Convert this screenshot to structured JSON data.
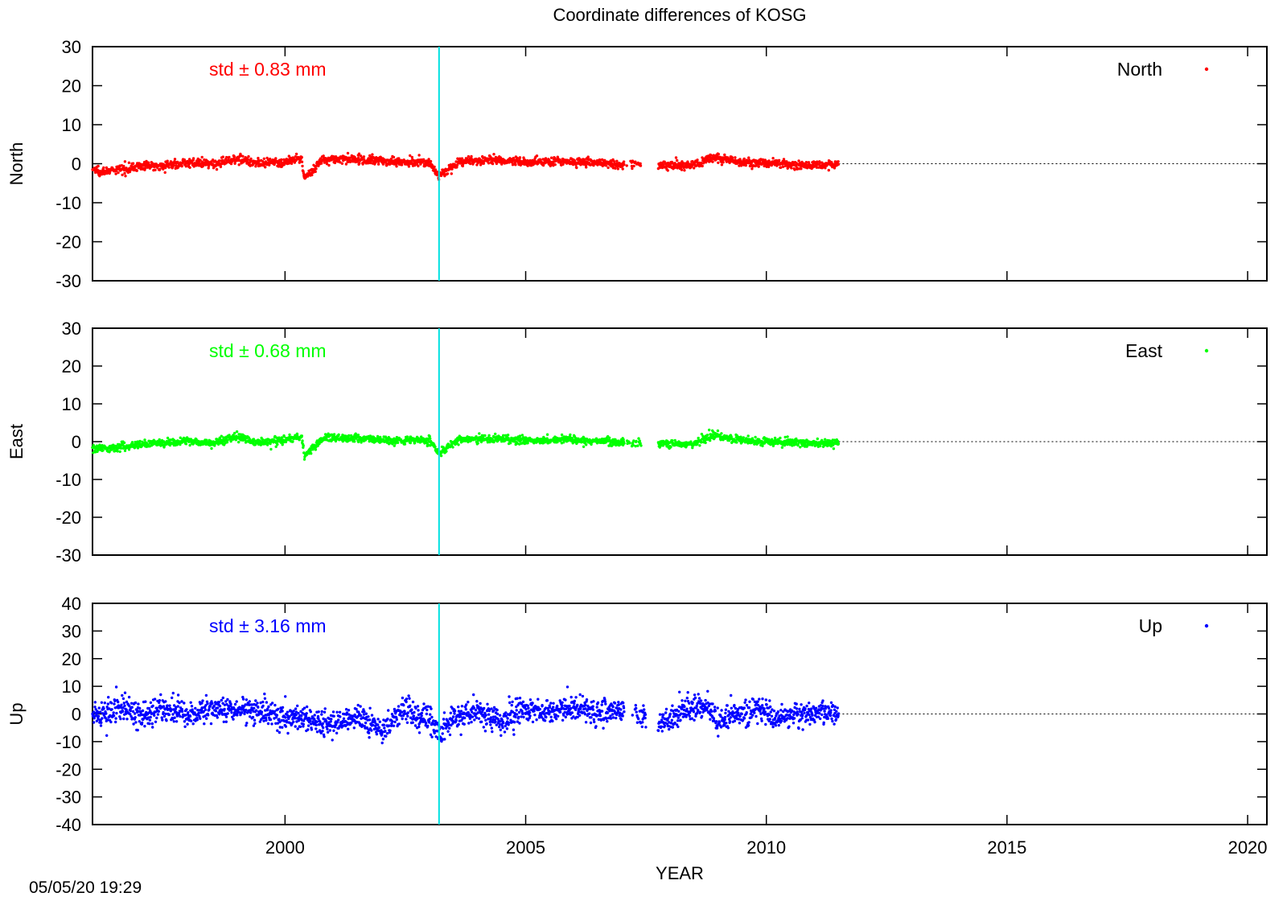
{
  "chart_data": {
    "type": "scatter",
    "title": "Coordinate differences of KOSG",
    "xlabel": "YEAR",
    "timestamp": "05/05/20 19:29",
    "xlim": [
      1996.0,
      2020.4
    ],
    "x_ticks": [
      2000,
      2005,
      2010,
      2015,
      2020
    ],
    "x_tick_labels": [
      "2000",
      "2005",
      "2010",
      "2015",
      "2020"
    ],
    "event_line": {
      "x": 2003.2,
      "color": "#00e0e0"
    },
    "zero_line": "dotted",
    "panels": [
      {
        "name": "North",
        "ylabel": "North",
        "legend": "North",
        "legend_position": "top-right",
        "color": "#ff0000",
        "std_text": "std ± 0.83 mm",
        "ylim": [
          -30,
          30
        ],
        "y_ticks": [
          30,
          20,
          10,
          0,
          -10,
          -20,
          -30
        ],
        "y_tick_labels": [
          "30",
          "20",
          "10",
          "0",
          "-10",
          "-20",
          "-30"
        ],
        "data_x_range": [
          1996.0,
          2011.5
        ],
        "gaps": [
          [
            2007.05,
            2007.1
          ],
          [
            2007.4,
            2007.75
          ]
        ],
        "series_points": [
          [
            1996.0,
            -1.5
          ],
          [
            1996.3,
            -2.0
          ],
          [
            1996.6,
            -1.4
          ],
          [
            1997.0,
            -0.6
          ],
          [
            1997.5,
            -0.4
          ],
          [
            1998.0,
            0.3
          ],
          [
            1998.5,
            -0.2
          ],
          [
            1999.0,
            1.4
          ],
          [
            1999.5,
            -0.1
          ],
          [
            2000.0,
            0.4
          ],
          [
            2000.35,
            1.3
          ],
          [
            2000.4,
            -3.8
          ],
          [
            2000.8,
            1.2
          ],
          [
            2001.3,
            1.1
          ],
          [
            2001.8,
            0.9
          ],
          [
            2002.4,
            0.5
          ],
          [
            2003.0,
            0.4
          ],
          [
            2003.2,
            -3.2
          ],
          [
            2003.6,
            0.4
          ],
          [
            2004.2,
            0.9
          ],
          [
            2005.0,
            0.5
          ],
          [
            2005.8,
            0.6
          ],
          [
            2006.5,
            0.3
          ],
          [
            2007.2,
            -0.3
          ],
          [
            2007.9,
            -0.4
          ],
          [
            2008.5,
            -0.5
          ],
          [
            2008.9,
            1.8
          ],
          [
            2009.5,
            0.2
          ],
          [
            2010.2,
            0.1
          ],
          [
            2010.8,
            -0.4
          ],
          [
            2011.5,
            -0.2
          ]
        ]
      },
      {
        "name": "East",
        "ylabel": "East",
        "legend": "East",
        "legend_position": "top-right",
        "color": "#00ff00",
        "std_text": "std ± 0.68 mm",
        "ylim": [
          -30,
          30
        ],
        "y_ticks": [
          30,
          20,
          10,
          0,
          -10,
          -20,
          -30
        ],
        "y_tick_labels": [
          "30",
          "20",
          "10",
          "0",
          "-10",
          "-20",
          "-30"
        ],
        "data_x_range": [
          1996.0,
          2011.5
        ],
        "gaps": [
          [
            2007.05,
            2007.1
          ],
          [
            2007.4,
            2007.75
          ]
        ],
        "series_points": [
          [
            1996.0,
            -1.6
          ],
          [
            1996.3,
            -1.8
          ],
          [
            1996.6,
            -1.2
          ],
          [
            1997.0,
            -0.6
          ],
          [
            1997.5,
            -0.3
          ],
          [
            1998.0,
            0.2
          ],
          [
            1998.5,
            -0.4
          ],
          [
            1999.0,
            1.3
          ],
          [
            1999.5,
            -0.3
          ],
          [
            2000.0,
            0.4
          ],
          [
            2000.35,
            1.4
          ],
          [
            2000.4,
            -3.8
          ],
          [
            2000.8,
            1.1
          ],
          [
            2001.3,
            1.0
          ],
          [
            2001.8,
            0.6
          ],
          [
            2002.4,
            0.3
          ],
          [
            2003.0,
            0.3
          ],
          [
            2003.2,
            -3.0
          ],
          [
            2003.6,
            0.4
          ],
          [
            2004.2,
            0.8
          ],
          [
            2005.0,
            0.4
          ],
          [
            2005.8,
            0.5
          ],
          [
            2006.5,
            0.2
          ],
          [
            2007.2,
            -0.3
          ],
          [
            2007.9,
            -0.6
          ],
          [
            2008.5,
            -0.6
          ],
          [
            2008.9,
            1.8
          ],
          [
            2009.5,
            0.1
          ],
          [
            2010.2,
            0.0
          ],
          [
            2010.8,
            -0.3
          ],
          [
            2011.5,
            -0.3
          ]
        ]
      },
      {
        "name": "Up",
        "ylabel": "Up",
        "legend": "Up",
        "legend_position": "top-right",
        "color": "#0000ff",
        "std_text": "std ± 3.16 mm",
        "ylim": [
          -40,
          40
        ],
        "y_ticks": [
          40,
          30,
          20,
          10,
          0,
          -10,
          -20,
          -30,
          -40
        ],
        "y_tick_labels": [
          "40",
          "30",
          "20",
          "10",
          "0",
          "-10",
          "-20",
          "-30",
          "-40"
        ],
        "data_x_range": [
          1996.0,
          2011.5
        ],
        "gaps": [
          [
            2007.05,
            2007.2
          ],
          [
            2007.5,
            2007.75
          ]
        ],
        "series_points": [
          [
            1996.0,
            -1.0
          ],
          [
            1996.3,
            0.5
          ],
          [
            1996.6,
            2.5
          ],
          [
            1997.0,
            0.0
          ],
          [
            1997.5,
            1.0
          ],
          [
            1998.0,
            -0.5
          ],
          [
            1998.5,
            2.5
          ],
          [
            1999.0,
            0.5
          ],
          [
            1999.5,
            1.5
          ],
          [
            2000.0,
            -1.0
          ],
          [
            2000.5,
            -1.5
          ],
          [
            2001.0,
            -4.5
          ],
          [
            2001.5,
            -0.5
          ],
          [
            2002.0,
            -5.5
          ],
          [
            2002.5,
            1.0
          ],
          [
            2003.0,
            -2.0
          ],
          [
            2003.2,
            -7.0
          ],
          [
            2003.5,
            -1.0
          ],
          [
            2004.0,
            1.0
          ],
          [
            2004.5,
            -3.0
          ],
          [
            2005.0,
            1.5
          ],
          [
            2005.5,
            0.5
          ],
          [
            2006.0,
            2.5
          ],
          [
            2006.5,
            0.0
          ],
          [
            2007.0,
            1.5
          ],
          [
            2007.8,
            -3.0
          ],
          [
            2008.3,
            1.0
          ],
          [
            2008.7,
            3.5
          ],
          [
            2009.0,
            -2.0
          ],
          [
            2009.5,
            0.5
          ],
          [
            2009.8,
            2.5
          ],
          [
            2010.2,
            -2.0
          ],
          [
            2010.8,
            0.5
          ],
          [
            2011.5,
            0.5
          ]
        ]
      }
    ]
  }
}
